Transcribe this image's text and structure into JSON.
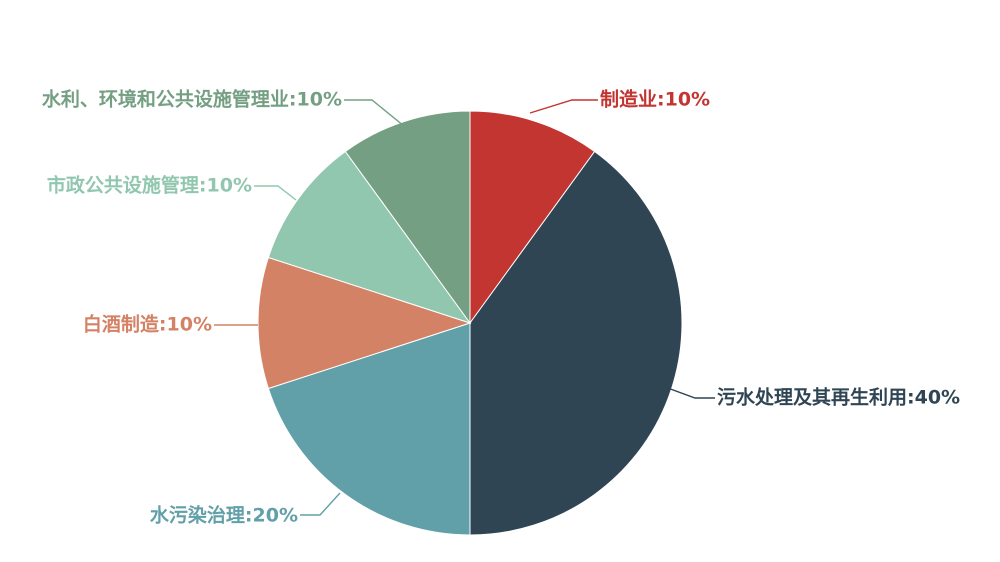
{
  "chart_data": {
    "type": "pie",
    "title": "",
    "slices": [
      {
        "label": "制造业",
        "value": 10,
        "color": "#c23531"
      },
      {
        "label": "污水处理及其再生利用",
        "value": 40,
        "color": "#2f4554"
      },
      {
        "label": "水污染治理",
        "value": 20,
        "color": "#61a0a8"
      },
      {
        "label": "白酒制造",
        "value": 10,
        "color": "#d48265"
      },
      {
        "label": "市政公共设施管理",
        "value": 10,
        "color": "#91c7ae"
      },
      {
        "label": "水利、环境和公共设施管理业",
        "value": 10,
        "color": "#749f83"
      }
    ],
    "display_labels": [
      "制造业:10%",
      "污水处理及其再生利用:40%",
      "水污染治理:20%",
      "白酒制造:10%",
      "市政公共设施管理:10%",
      "水利、环境和公共设施管理业:10%"
    ],
    "start_angle": "12 o'clock",
    "direction": "clockwise",
    "legend": "none"
  }
}
